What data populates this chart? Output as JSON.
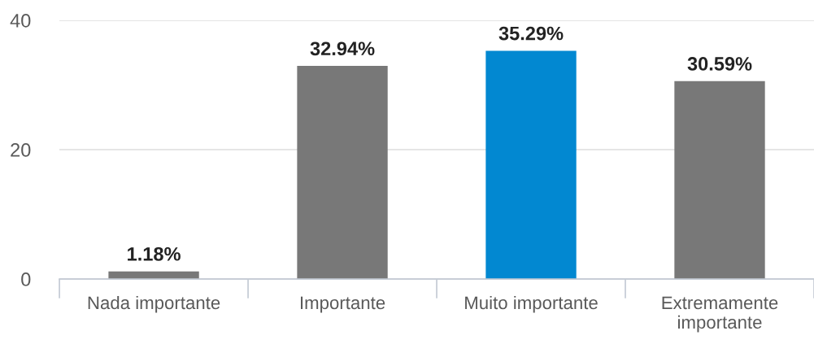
{
  "chart_data": {
    "type": "bar",
    "categories": [
      "Nada importante",
      "Importante",
      "Muito importante",
      "Extremamente\nimportante"
    ],
    "values": [
      1.18,
      32.94,
      35.29,
      30.59
    ],
    "colors": [
      "#787878",
      "#787878",
      "#0288d1",
      "#787878"
    ],
    "value_labels": [
      "1.18%",
      "32.94%",
      "35.29%",
      "30.59%"
    ],
    "ylim": [
      0,
      40
    ],
    "yticks": [
      0,
      20,
      40
    ],
    "grid": "y"
  }
}
